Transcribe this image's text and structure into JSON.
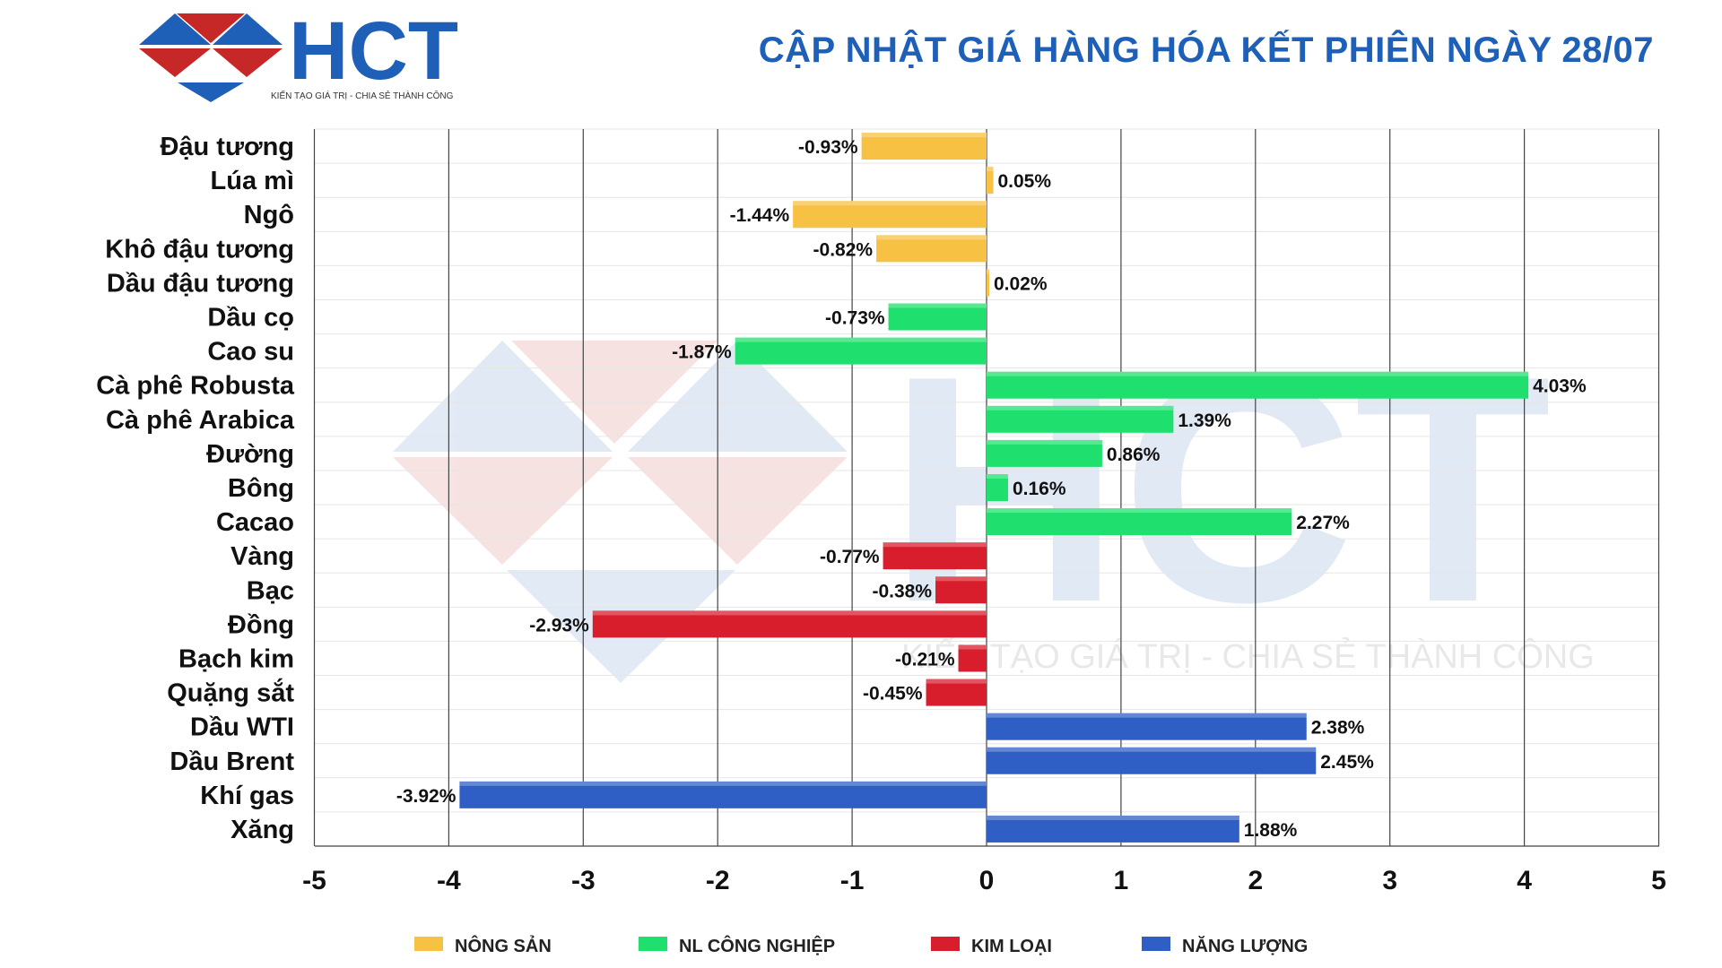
{
  "header": {
    "logo_text": "HCT",
    "logo_tagline": "KIẾN TẠO GIÁ TRỊ - CHIA SẺ THÀNH CÔNG",
    "title": "CẬP NHẬT GIÁ HÀNG HÓA KẾT PHIÊN NGÀY 28/07"
  },
  "watermark": {
    "text": "HCT",
    "tagline": "KIẾN TẠO GIÁ TRỊ - CHIA SẺ THÀNH CÔNG"
  },
  "chart_data": {
    "type": "bar",
    "orientation": "horizontal",
    "title": "CẬP NHẬT GIÁ HÀNG HÓA KẾT PHIÊN NGÀY 28/07",
    "xlim": [
      -5,
      5
    ],
    "xticks": [
      -5,
      -4,
      -3,
      -2,
      -1,
      0,
      1,
      2,
      3,
      4,
      5
    ],
    "grid": true,
    "legend_position": "bottom",
    "categories": [
      "Đậu tương",
      "Lúa mì",
      "Ngô",
      "Khô đậu tương",
      "Dầu đậu tương",
      "Dầu cọ",
      "Cao su",
      "Cà phê Robusta",
      "Cà phê Arabica",
      "Đường",
      "Bông",
      "Cacao",
      "Vàng",
      "Bạc",
      "Đồng",
      "Bạch kim",
      "Quặng sắt",
      "Dầu WTI",
      "Dầu Brent",
      "Khí gas",
      "Xăng"
    ],
    "values": [
      -0.93,
      0.05,
      -1.44,
      -0.82,
      0.02,
      -0.73,
      -1.87,
      4.03,
      1.39,
      0.86,
      0.16,
      2.27,
      -0.77,
      -0.38,
      -2.93,
      -0.21,
      -0.45,
      2.38,
      2.45,
      -3.92,
      1.88
    ],
    "groups": [
      0,
      0,
      0,
      0,
      0,
      1,
      1,
      1,
      1,
      1,
      1,
      1,
      2,
      2,
      2,
      2,
      2,
      3,
      3,
      3,
      3
    ],
    "legend": [
      {
        "name": "NÔNG SẢN",
        "color": "#f7c244"
      },
      {
        "name": "NL CÔNG NGHIỆP",
        "color": "#1fe06e"
      },
      {
        "name": "KIM LOẠI",
        "color": "#d81e2c"
      },
      {
        "name": "NĂNG LƯỢNG",
        "color": "#2f5fc4"
      }
    ]
  }
}
